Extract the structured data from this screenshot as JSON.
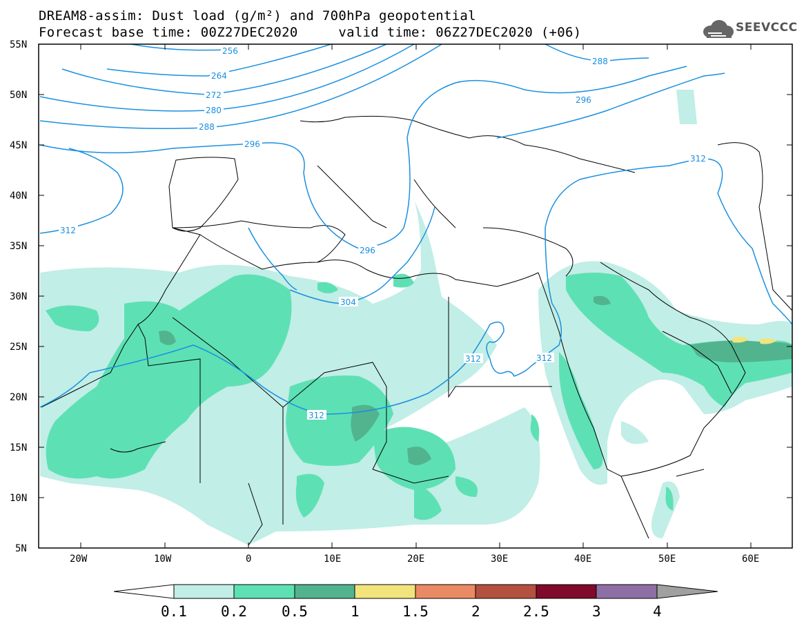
{
  "header": {
    "title_line1": "DREAM8-assim: Dust load (g/m²) and 700hPa geopotential",
    "title_line2": "Forecast base time: 00Z27DEC2020     valid time: 06Z27DEC2020 (+06)"
  },
  "logo": {
    "text": "SEEVCCC",
    "icon": "cloud-logo-icon"
  },
  "map": {
    "lat_ticks": [
      "55N",
      "50N",
      "45N",
      "40N",
      "35N",
      "30N",
      "25N",
      "20N",
      "15N",
      "10N",
      "5N"
    ],
    "lon_ticks": [
      "20W",
      "10W",
      "0",
      "10E",
      "20E",
      "30E",
      "40E",
      "50E",
      "60E"
    ],
    "contour_color": "#1a8fe0",
    "contour_labels": [
      "256",
      "264",
      "272",
      "280",
      "288",
      "296",
      "312",
      "296",
      "304",
      "312",
      "312",
      "312",
      "288",
      "296",
      "312"
    ]
  },
  "colorbar": {
    "labels": [
      "0.1",
      "0.2",
      "0.5",
      "1",
      "1.5",
      "2",
      "2.5",
      "3",
      "4"
    ],
    "colors": [
      "#ffffff",
      "#c1eee6",
      "#5ee0b5",
      "#52b48e",
      "#f1e47c",
      "#e98a65",
      "#b4503f",
      "#7f0a2b",
      "#8e6fa5",
      "#a0a0a0"
    ]
  }
}
